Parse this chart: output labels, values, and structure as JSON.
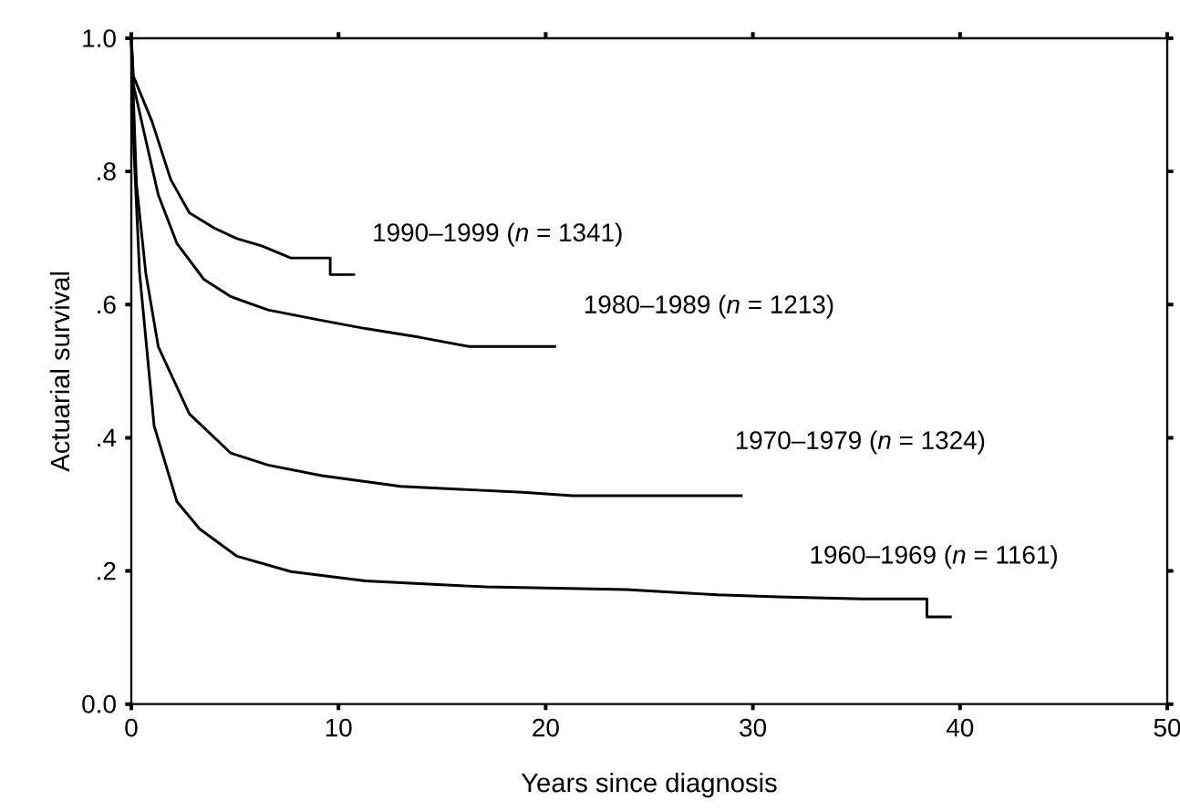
{
  "chart_data": {
    "type": "line",
    "xlabel": "Years since diagnosis",
    "ylabel": "Actuarial survival",
    "xlim": [
      0,
      50
    ],
    "ylim": [
      0,
      1
    ],
    "xticks": [
      0,
      10,
      20,
      30,
      40,
      50
    ],
    "yticks": [
      {
        "value": 0,
        "label": "0.0"
      },
      {
        "value": 0.2,
        "label": ".2"
      },
      {
        "value": 0.4,
        "label": ".4"
      },
      {
        "value": 0.6,
        "label": ".6"
      },
      {
        "value": 0.8,
        "label": ".8"
      },
      {
        "value": 1,
        "label": "1.0"
      }
    ],
    "grid": false,
    "legend": false,
    "marker": "none",
    "line_style": "solid",
    "series": [
      {
        "name": "1990–1999 (*n* = 1341)",
        "color": "#000000",
        "x": [
          0,
          0.1,
          1.0,
          1.9,
          2.8,
          4.0,
          5.1,
          6.3,
          7.7,
          9.6,
          9.6,
          10.8
        ],
        "values": [
          1.0,
          0.943,
          0.875,
          0.788,
          0.738,
          0.715,
          0.699,
          0.688,
          0.67,
          0.67,
          0.645,
          0.645
        ]
      },
      {
        "name": "1980–1989 (*n* = 1213)",
        "color": "#000000",
        "x": [
          0,
          0.1,
          0.7,
          1.3,
          2.2,
          3.5,
          4.8,
          6.6,
          8.9,
          11.3,
          13.9,
          16.3,
          20.5
        ],
        "values": [
          1.0,
          0.93,
          0.847,
          0.765,
          0.692,
          0.638,
          0.612,
          0.592,
          0.578,
          0.564,
          0.551,
          0.537,
          0.537
        ]
      },
      {
        "name": "1970–1979 (*n* = 1324)",
        "color": "#000000",
        "x": [
          0,
          0.25,
          0.7,
          1.3,
          2.8,
          4.8,
          6.6,
          9.2,
          13.0,
          18.9,
          21.3,
          29.5
        ],
        "values": [
          1.0,
          0.78,
          0.647,
          0.537,
          0.436,
          0.377,
          0.359,
          0.343,
          0.327,
          0.318,
          0.313,
          0.313
        ]
      },
      {
        "name": "1960–1969 (*n* = 1161)",
        "color": "#000000",
        "x": [
          0,
          0.1,
          0.4,
          1.1,
          2.2,
          3.3,
          5.1,
          7.7,
          11.3,
          17.1,
          23.9,
          28.3,
          31.2,
          35.3,
          38.4,
          38.4,
          39.6
        ],
        "values": [
          1.0,
          0.85,
          0.647,
          0.418,
          0.304,
          0.263,
          0.222,
          0.199,
          0.185,
          0.176,
          0.172,
          0.164,
          0.161,
          0.158,
          0.158,
          0.131,
          0.131
        ]
      }
    ]
  }
}
